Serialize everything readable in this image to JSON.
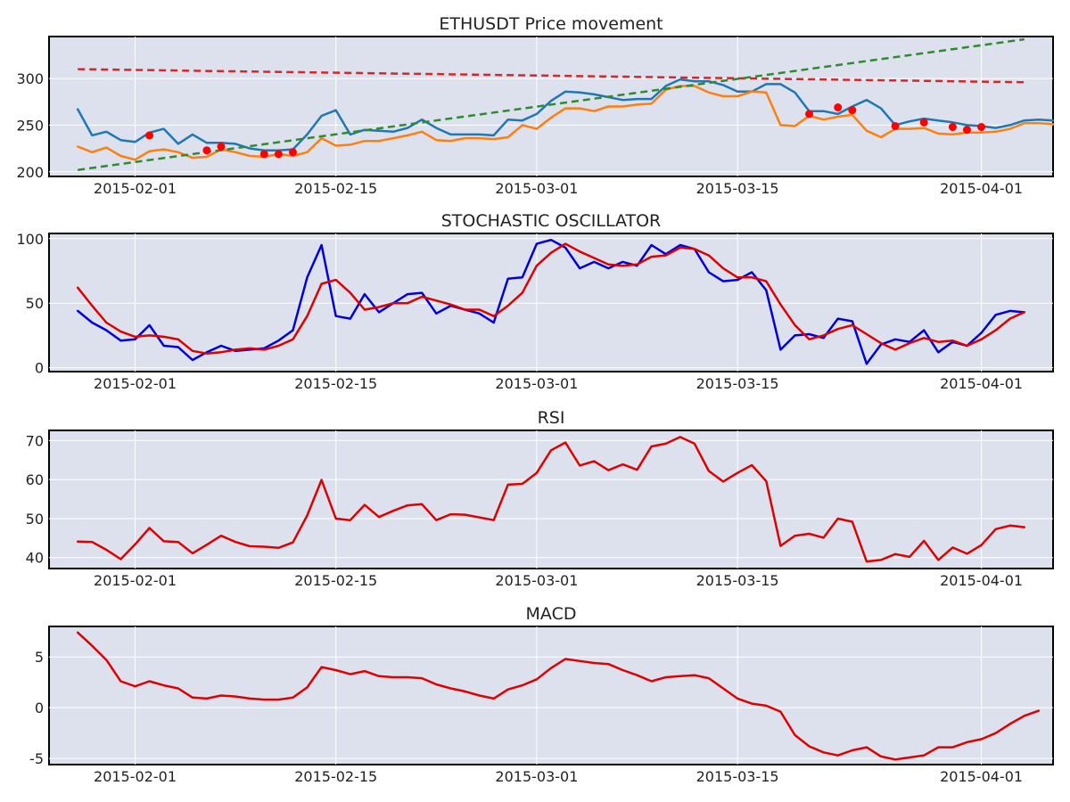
{
  "chart_data": [
    {
      "type": "line",
      "title": "ETHUSDT Price movement",
      "xlabel": "",
      "ylabel": "",
      "x_start": "2015-01-28",
      "x_range": [
        "2015-01-26",
        "2015-04-06"
      ],
      "x_ticks": [
        "2015-02-01",
        "2015-02-15",
        "2015-03-01",
        "2015-03-15",
        "2015-04-01"
      ],
      "ylim": [
        195,
        345
      ],
      "y_ticks": [
        200,
        250,
        300
      ],
      "grid": true,
      "series": [
        {
          "color": "#1f77b4",
          "values": [
            267,
            239,
            243,
            234,
            232,
            242,
            246,
            230,
            240,
            231,
            231,
            230,
            225,
            223,
            223,
            224,
            240,
            260,
            266,
            240,
            245,
            244,
            243,
            247,
            256,
            247,
            240,
            240,
            240,
            239,
            256,
            255,
            262,
            276,
            286,
            285,
            283,
            280,
            277,
            278,
            278,
            292,
            299,
            297,
            297,
            293,
            286,
            286,
            294,
            294,
            285,
            265,
            265,
            262,
            270,
            277,
            268,
            250,
            254,
            257,
            255,
            253,
            250,
            249,
            247,
            250,
            255,
            256,
            255
          ]
        },
        {
          "color": "#ff7f0e",
          "values": [
            227,
            221,
            226,
            217,
            213,
            222,
            224,
            221,
            215,
            216,
            224,
            221,
            217,
            216,
            219,
            217,
            221,
            236,
            228,
            229,
            233,
            233,
            236,
            239,
            243,
            234,
            233,
            236,
            236,
            235,
            237,
            250,
            246,
            258,
            268,
            268,
            265,
            270,
            270,
            272,
            273,
            288,
            292,
            292,
            285,
            281,
            281,
            286,
            285,
            250,
            249,
            260,
            256,
            259,
            261,
            244,
            237,
            246,
            246,
            247,
            241,
            240,
            242,
            242,
            243,
            246,
            252,
            252,
            251
          ]
        },
        {
          "color": "#d62728",
          "style": "dashed",
          "x": [
            "2015-01-28",
            "2015-04-04"
          ],
          "values": [
            310,
            296
          ]
        },
        {
          "color": "#2e8b2e",
          "style": "dashed",
          "x": [
            "2015-01-28",
            "2015-04-04"
          ],
          "values": [
            202,
            342
          ]
        },
        {
          "type": "scatter",
          "color": "#ff0000",
          "x": [
            "2015-02-02",
            "2015-02-06",
            "2015-02-07",
            "2015-02-10",
            "2015-02-11",
            "2015-02-12",
            "2015-03-20",
            "2015-03-22",
            "2015-03-23",
            "2015-03-26",
            "2015-03-28",
            "2015-03-30",
            "2015-03-31",
            "2015-04-01"
          ],
          "values": [
            239,
            223,
            227,
            219,
            219,
            221,
            262,
            269,
            266,
            249,
            253,
            248,
            245,
            248
          ]
        }
      ]
    },
    {
      "type": "line",
      "title": "STOCHASTIC OSCILLATOR",
      "xlabel": "",
      "ylabel": "",
      "x_start": "2015-01-28",
      "x_range": [
        "2015-01-26",
        "2015-04-06"
      ],
      "x_ticks": [
        "2015-02-01",
        "2015-02-15",
        "2015-03-01",
        "2015-03-15",
        "2015-04-01"
      ],
      "ylim": [
        -3,
        104
      ],
      "y_ticks": [
        0,
        50,
        100
      ],
      "grid": true,
      "series": [
        {
          "color": "#0000dd",
          "values": [
            44,
            35,
            29,
            21,
            22,
            33,
            17,
            16,
            6,
            12,
            17,
            13,
            14,
            15,
            21,
            29,
            70,
            95,
            40,
            38,
            57,
            43,
            50,
            57,
            58,
            42,
            48,
            45,
            42,
            35,
            69,
            70,
            96,
            99,
            93,
            77,
            82,
            77,
            82,
            79,
            95,
            88,
            95,
            92,
            74,
            67,
            68,
            74,
            60,
            14,
            25,
            26,
            23,
            38,
            36,
            3,
            18,
            22,
            20,
            29,
            12,
            20,
            17,
            27,
            41,
            44,
            43
          ]
        },
        {
          "color": "#e00000",
          "values": [
            62,
            48,
            35,
            28,
            24,
            25,
            24,
            22,
            13,
            11,
            12,
            14,
            15,
            14,
            17,
            22,
            40,
            65,
            68,
            58,
            45,
            47,
            50,
            50,
            55,
            52,
            49,
            45,
            45,
            40,
            48,
            58,
            79,
            89,
            96,
            90,
            85,
            80,
            79,
            80,
            86,
            87,
            93,
            92,
            87,
            77,
            70,
            70,
            67,
            49,
            33,
            22,
            25,
            30,
            33,
            26,
            19,
            14,
            19,
            23,
            20,
            21,
            17,
            22,
            29,
            38,
            43
          ]
        }
      ]
    },
    {
      "type": "line",
      "title": "RSI",
      "xlabel": "",
      "ylabel": "",
      "x_start": "2015-01-28",
      "x_range": [
        "2015-01-26",
        "2015-04-06"
      ],
      "x_ticks": [
        "2015-02-01",
        "2015-02-15",
        "2015-03-01",
        "2015-03-15",
        "2015-04-01"
      ],
      "ylim": [
        37.2,
        72.6
      ],
      "y_ticks": [
        40,
        50,
        60,
        70
      ],
      "grid": true,
      "series": [
        {
          "color": "#e00000",
          "values": [
            44.1,
            44.0,
            42.0,
            39.6,
            43.4,
            47.6,
            44.2,
            44.0,
            41.1,
            43.3,
            45.6,
            44.0,
            42.9,
            42.8,
            42.5,
            43.9,
            50.8,
            59.9,
            50.0,
            49.6,
            53.5,
            50.4,
            52.0,
            53.4,
            53.7,
            49.6,
            51.1,
            51.0,
            50.3,
            49.6,
            58.7,
            58.9,
            61.7,
            67.5,
            69.5,
            63.6,
            64.7,
            62.4,
            63.9,
            62.5,
            68.5,
            69.2,
            70.9,
            69.2,
            62.2,
            59.5,
            61.7,
            63.7,
            59.6,
            43.0,
            45.6,
            46.1,
            45.1,
            50.0,
            49.2,
            39.0,
            39.4,
            40.9,
            40.2,
            44.3,
            39.4,
            42.6,
            41.0,
            43.2,
            47.3,
            48.2,
            47.8
          ]
        }
      ]
    },
    {
      "type": "line",
      "title": "MACD",
      "xlabel": "",
      "ylabel": "",
      "x_start": "2015-01-28",
      "x_range": [
        "2015-01-26",
        "2015-04-06"
      ],
      "x_ticks": [
        "2015-02-01",
        "2015-02-15",
        "2015-03-01",
        "2015-03-15",
        "2015-04-01"
      ],
      "ylim": [
        -5.6,
        8.0
      ],
      "y_ticks": [
        -5,
        0,
        5
      ],
      "grid": true,
      "series": [
        {
          "color": "#e00000",
          "values": [
            7.4,
            6.1,
            4.7,
            2.6,
            2.1,
            2.6,
            2.2,
            1.9,
            1.0,
            0.9,
            1.2,
            1.1,
            0.9,
            0.8,
            0.8,
            1.0,
            2.0,
            4.0,
            3.7,
            3.3,
            3.6,
            3.1,
            3.0,
            3.0,
            2.9,
            2.3,
            1.9,
            1.6,
            1.2,
            0.9,
            1.8,
            2.2,
            2.8,
            3.9,
            4.8,
            4.6,
            4.4,
            4.3,
            3.7,
            3.2,
            2.6,
            3.0,
            3.1,
            3.2,
            2.9,
            1.9,
            0.9,
            0.4,
            0.2,
            -0.4,
            -2.7,
            -3.8,
            -4.4,
            -4.7,
            -4.2,
            -3.9,
            -4.8,
            -5.1,
            -4.9,
            -4.7,
            -3.9,
            -3.9,
            -3.4,
            -3.1,
            -2.5,
            -1.6,
            -0.8,
            -0.3
          ]
        }
      ]
    }
  ]
}
